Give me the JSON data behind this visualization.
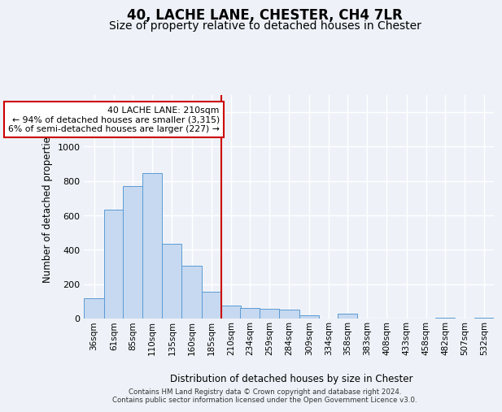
{
  "title": "40, LACHE LANE, CHESTER, CH4 7LR",
  "subtitle": "Size of property relative to detached houses in Chester",
  "xlabel": "Distribution of detached houses by size in Chester",
  "ylabel": "Number of detached properties",
  "bins_left": [
    36,
    61,
    85,
    110,
    135,
    160,
    185,
    210,
    234,
    259,
    284,
    309,
    334,
    358,
    383,
    408,
    433,
    458,
    482,
    507,
    532
  ],
  "bin_width": 25,
  "counts": [
    120,
    635,
    770,
    845,
    435,
    305,
    155,
    75,
    60,
    55,
    50,
    20,
    0,
    28,
    0,
    0,
    0,
    0,
    5,
    0,
    3
  ],
  "bar_color": "#c6d9f0",
  "bar_edge_color": "#5b9bd5",
  "property_sqm": 210,
  "property_line_color": "#cc0000",
  "annotation_text": "40 LACHE LANE: 210sqm\n← 94% of detached houses are smaller (3,315)\n6% of semi-detached houses are larger (227) →",
  "ylim": [
    0,
    1300
  ],
  "yticks": [
    0,
    200,
    400,
    600,
    800,
    1000,
    1200
  ],
  "bg_color": "#eef2f8",
  "title_fontsize": 12,
  "subtitle_fontsize": 10,
  "footer_line1": "Contains HM Land Registry data © Crown copyright and database right 2024.",
  "footer_line2": "Contains public sector information licensed under the Open Government Licence v3.0."
}
